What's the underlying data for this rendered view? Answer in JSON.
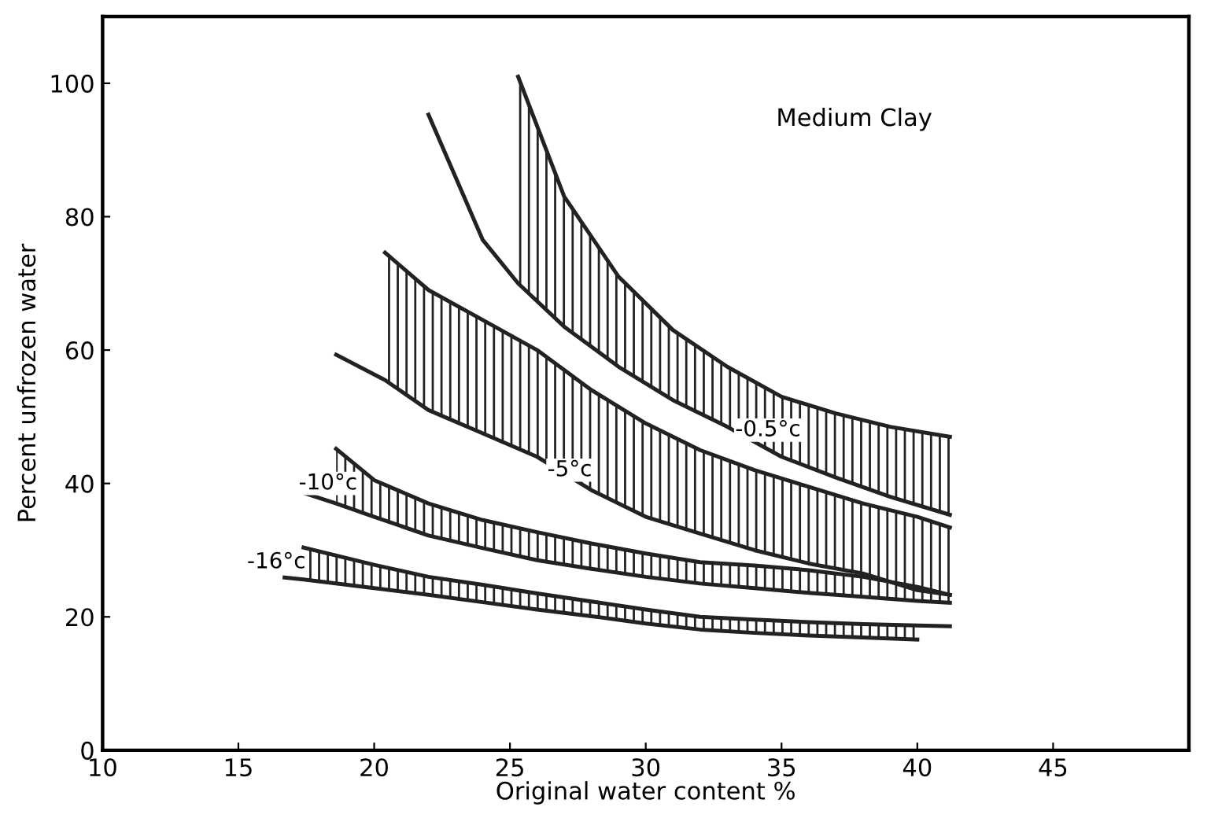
{
  "chart_data": {
    "type": "line",
    "xlabel": "Original water content %",
    "ylabel": "Percent unfrozen water",
    "xlim": [
      10,
      50
    ],
    "ylim": [
      0,
      110
    ],
    "xticks": [
      10,
      15,
      20,
      25,
      30,
      35,
      40,
      45
    ],
    "yticks": [
      0,
      20,
      40,
      60,
      80,
      100
    ],
    "grid": false,
    "legend": false,
    "marker": "none",
    "line_style": "solid",
    "series": [
      {
        "color": "#222222",
        "x": [
          25.3,
          27,
          29,
          31,
          33,
          35,
          37,
          39,
          41.2
        ],
        "values": [
          101,
          83,
          71,
          63,
          57.5,
          53,
          50.5,
          48.5,
          47
        ]
      },
      {
        "color": "#222222",
        "x": [
          22,
          24,
          25.3,
          27,
          29,
          31,
          33,
          35,
          37,
          39,
          41.2
        ],
        "values": [
          95.3,
          76.5,
          70,
          63.5,
          57.5,
          52.5,
          48.5,
          44,
          40.9,
          38,
          35.3
        ]
      },
      {
        "color": "#222222",
        "x": [
          20.4,
          22,
          24,
          26,
          28,
          30,
          32,
          34,
          36,
          38,
          40,
          41.2
        ],
        "values": [
          74.6,
          69,
          64.5,
          60,
          54,
          49,
          45,
          42,
          39.5,
          37,
          35,
          33.4
        ]
      },
      {
        "color": "#222222",
        "x": [
          18.6,
          20.4,
          22,
          24,
          26,
          28,
          30,
          32,
          34,
          36,
          38,
          40,
          41.2
        ],
        "values": [
          59.3,
          55.5,
          51,
          47.5,
          44,
          39,
          35,
          32.5,
          30,
          28,
          26.5,
          24,
          23.3
        ]
      },
      {
        "color": "#222222",
        "x": [
          18.6,
          20,
          22,
          24,
          26,
          28,
          30,
          32,
          34,
          36,
          38,
          40,
          41.2
        ],
        "values": [
          45.2,
          40.5,
          37,
          34.5,
          32.7,
          31,
          29.5,
          28.2,
          27.7,
          27,
          26,
          24.5,
          23.3
        ]
      },
      {
        "color": "#222222",
        "x": [
          17.4,
          18.6,
          20,
          22,
          24,
          26,
          28,
          30,
          32,
          34,
          36,
          38,
          40,
          41.2
        ],
        "values": [
          38.6,
          37,
          35,
          32.2,
          30.3,
          28.5,
          27.2,
          26,
          25,
          24.3,
          23.6,
          23,
          22.4,
          22.1
        ]
      },
      {
        "color": "#222222",
        "x": [
          17.4,
          20,
          22,
          24,
          26,
          28,
          30,
          32,
          34,
          36,
          38,
          40,
          41.2
        ],
        "values": [
          30.4,
          27.8,
          26,
          24.8,
          23.5,
          22.3,
          21.1,
          20,
          19.6,
          19.2,
          18.9,
          18.7,
          18.6
        ]
      },
      {
        "color": "#222222",
        "x": [
          16.7,
          17.4,
          20,
          22,
          24,
          26,
          28,
          30,
          32,
          34,
          36,
          38,
          40
        ],
        "values": [
          25.9,
          25.6,
          24.3,
          23.3,
          22.2,
          21.1,
          20.1,
          19,
          18.1,
          17.6,
          17.2,
          16.9,
          16.6
        ]
      }
    ],
    "annotations": [
      {
        "text": "-0.5°c",
        "x": 34.5,
        "y": 48
      },
      {
        "text": "-5°c",
        "x": 27.2,
        "y": 42
      },
      {
        "text": "-10°c",
        "x": 18.3,
        "y": 40
      },
      {
        "text": "-16°c",
        "x": 16.4,
        "y": 28.2
      },
      "Medium Clay"
    ]
  }
}
